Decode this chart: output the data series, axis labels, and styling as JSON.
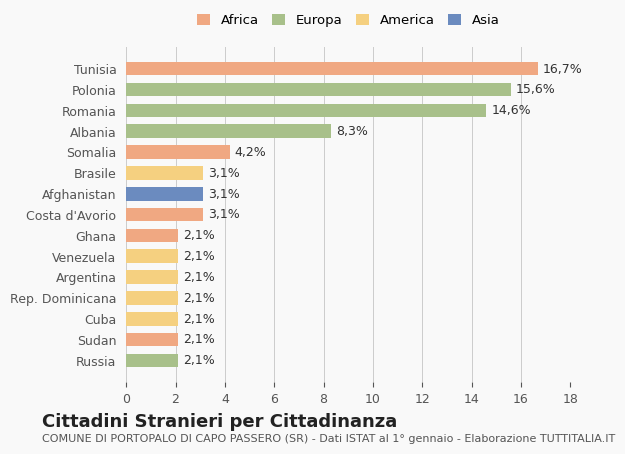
{
  "countries": [
    "Russia",
    "Sudan",
    "Cuba",
    "Rep. Dominicana",
    "Argentina",
    "Venezuela",
    "Ghana",
    "Costa d'Avorio",
    "Afghanistan",
    "Brasile",
    "Somalia",
    "Albania",
    "Romania",
    "Polonia",
    "Tunisia"
  ],
  "values": [
    2.1,
    2.1,
    2.1,
    2.1,
    2.1,
    2.1,
    2.1,
    3.1,
    3.1,
    3.1,
    4.2,
    8.3,
    14.6,
    15.6,
    16.7
  ],
  "labels": [
    "2,1%",
    "2,1%",
    "2,1%",
    "2,1%",
    "2,1%",
    "2,1%",
    "2,1%",
    "3,1%",
    "3,1%",
    "3,1%",
    "4,2%",
    "8,3%",
    "14,6%",
    "15,6%",
    "16,7%"
  ],
  "colors": [
    "#a8c08a",
    "#f0a882",
    "#f5d080",
    "#f5d080",
    "#f5d080",
    "#f5d080",
    "#f0a882",
    "#f0a882",
    "#6b8bbf",
    "#f5d080",
    "#f0a882",
    "#a8c08a",
    "#a8c08a",
    "#a8c08a",
    "#f0a882"
  ],
  "legend_labels": [
    "Africa",
    "Europa",
    "America",
    "Asia"
  ],
  "legend_colors": [
    "#f0a882",
    "#a8c08a",
    "#f5d080",
    "#6b8bbf"
  ],
  "title": "Cittadini Stranieri per Cittadinanza",
  "subtitle": "COMUNE DI PORTOPALO DI CAPO PASSERO (SR) - Dati ISTAT al 1° gennaio - Elaborazione TUTTITALIA.IT",
  "xlim": [
    0,
    18
  ],
  "xticks": [
    0,
    2,
    4,
    6,
    8,
    10,
    12,
    14,
    16,
    18
  ],
  "bg_color": "#f9f9f9",
  "bar_height": 0.65,
  "label_fontsize": 9,
  "tick_fontsize": 9,
  "title_fontsize": 13,
  "subtitle_fontsize": 8
}
